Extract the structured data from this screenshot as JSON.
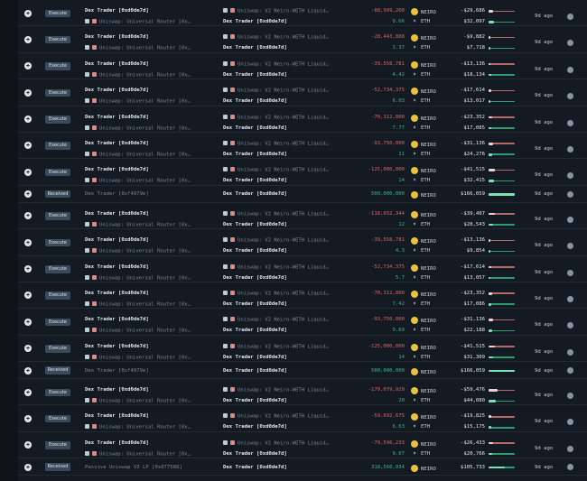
{
  "labels": {
    "execute": "Execute",
    "received": "Received",
    "ago": "9d ago",
    "router": "Uniswap: Universal Router [0x…",
    "pool": "Uniswap: V2 Neiro-WETH Liquid…",
    "trader": "Dex Trader [0xd0de7d]",
    "neiro": "NEIRO",
    "eth": "ETH"
  },
  "colors": {
    "negative": "#d16a6a",
    "positive": "#3fb489",
    "badge": "#3b4a5a",
    "background": "#131a22"
  },
  "rows": [
    {
      "type": "execute",
      "neiro": "-88,999,260",
      "eth": "9.66",
      "neiro_usd": "-$29,686",
      "eth_usd": "$32,097"
    },
    {
      "type": "execute",
      "neiro": "-28,443,888",
      "eth": "3.37",
      "neiro_usd": "-$9,882",
      "eth_usd": "$7,718"
    },
    {
      "type": "execute",
      "neiro": "-39,558,781",
      "eth": "4.42",
      "neiro_usd": "-$13,136",
      "eth_usd": "$18,134"
    },
    {
      "type": "execute",
      "neiro": "-52,734,375",
      "eth": "6.03",
      "neiro_usd": "-$17,614",
      "eth_usd": "$13,017"
    },
    {
      "type": "execute",
      "neiro": "-70,312,800",
      "eth": "7.77",
      "neiro_usd": "-$23,352",
      "eth_usd": "$17,085"
    },
    {
      "type": "execute",
      "neiro": "-93,750,000",
      "eth": "11",
      "neiro_usd": "-$31,136",
      "eth_usd": "$24,276"
    },
    {
      "type": "execute",
      "neiro": "-125,000,000",
      "eth": "14",
      "neiro_usd": "-$41,515",
      "eth_usd": "$32,415"
    },
    {
      "type": "received",
      "from": "Dex Trader [0xf4979e]",
      "neiro": "500,000,000",
      "neiro_usd": "$166,059"
    },
    {
      "type": "execute",
      "neiro": "-118,652,344",
      "eth": "12",
      "neiro_usd": "-$39,407",
      "eth_usd": "$28,543"
    },
    {
      "type": "execute",
      "neiro": "-39,558,781",
      "eth": "4.3",
      "neiro_usd": "-$13,136",
      "eth_usd": "$9,854"
    },
    {
      "type": "execute",
      "neiro": "-52,734,375",
      "eth": "5.7",
      "neiro_usd": "-$17,614",
      "eth_usd": "$13,057"
    },
    {
      "type": "execute",
      "neiro": "-70,312,800",
      "eth": "7.42",
      "neiro_usd": "-$23,352",
      "eth_usd": "$17,086"
    },
    {
      "type": "execute",
      "neiro": "-93,750,000",
      "eth": "9.69",
      "neiro_usd": "-$31,136",
      "eth_usd": "$22,188"
    },
    {
      "type": "execute",
      "neiro": "-125,000,000",
      "eth": "14",
      "neiro_usd": "-$41,515",
      "eth_usd": "$31,309"
    },
    {
      "type": "received",
      "from": "Dex Trader [0xf4979e]",
      "neiro": "500,000,000",
      "neiro_usd": "$166,059"
    },
    {
      "type": "execute",
      "neiro": "-179,079,920",
      "eth": "20",
      "neiro_usd": "-$59,476",
      "eth_usd": "$44,080"
    },
    {
      "type": "execute",
      "neiro": "-59,692,675",
      "eth": "6.63",
      "neiro_usd": "-$19,825",
      "eth_usd": "$15,175"
    },
    {
      "type": "execute",
      "neiro": "-79,596,233",
      "eth": "9.07",
      "neiro_usd": "-$26,433",
      "eth_usd": "$20,766"
    },
    {
      "type": "received",
      "from": "Passive Uniswap V3 LP [0x077588]",
      "neiro": "318,560,934",
      "neiro_usd": "$105,733"
    }
  ]
}
